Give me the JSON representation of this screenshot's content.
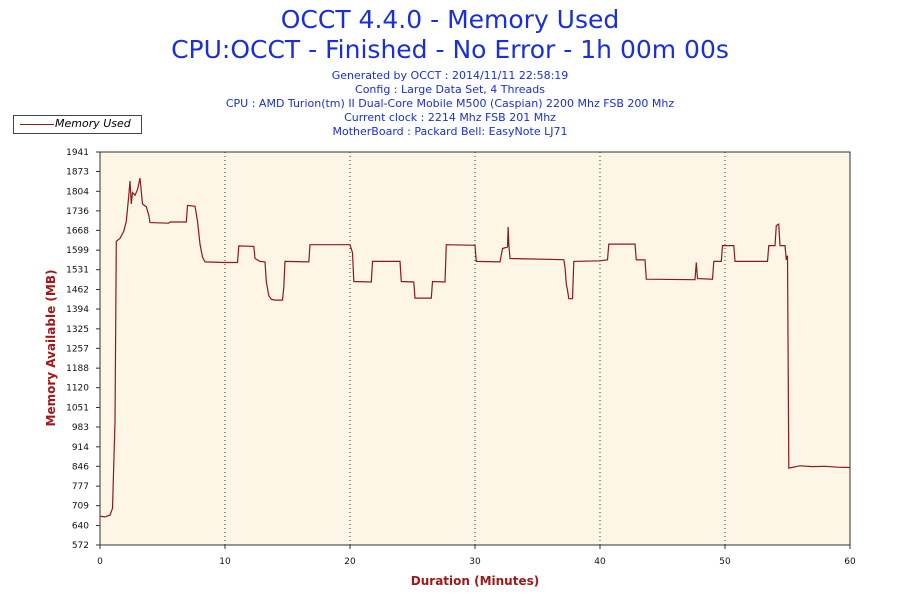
{
  "chart_data": {
    "type": "line",
    "title": "OCCT 4.4.0 - Memory Used",
    "subtitle": "CPU:OCCT - Finished - No Error - 1h 00m 00s",
    "info_lines": [
      "Generated by OCCT : 2014/11/11 22:58:19",
      "Config : Large Data Set, 4 Threads",
      "CPU : AMD Turion(tm) II Dual-Core Mobile M500 (Caspian) 2200 Mhz FSB 200 Mhz",
      "Current clock : 2214 Mhz FSB 201 Mhz",
      "MotherBoard : Packard Bell: EasyNote LJ71"
    ],
    "xlabel": "Duration (Minutes)",
    "ylabel": "Memory Available (MB)",
    "xlim": [
      0,
      60
    ],
    "ylim": [
      572,
      1941
    ],
    "xticks": [
      "0",
      "10",
      "20",
      "30",
      "40",
      "50",
      "60"
    ],
    "yticks": [
      "572",
      "640",
      "709",
      "777",
      "846",
      "914",
      "983",
      "1051",
      "1120",
      "1188",
      "1257",
      "1325",
      "1394",
      "1462",
      "1531",
      "1599",
      "1668",
      "1736",
      "1804",
      "1873",
      "1941"
    ],
    "grid": "vertical dotted lines at x ticks",
    "legend": "top-left",
    "colors": {
      "line": "#8b1a1a",
      "plot_bg": "#fdf5e6",
      "title": "#1a2fd8",
      "axis_title": "#a01818"
    },
    "series": [
      {
        "name": "Memory Used",
        "points": [
          [
            0,
            672
          ],
          [
            0.4,
            670
          ],
          [
            0.8,
            676
          ],
          [
            1.0,
            700
          ],
          [
            1.2,
            1000
          ],
          [
            1.3,
            1630
          ],
          [
            1.6,
            1640
          ],
          [
            1.9,
            1665
          ],
          [
            2.1,
            1700
          ],
          [
            2.3,
            1790
          ],
          [
            2.4,
            1840
          ],
          [
            2.5,
            1760
          ],
          [
            2.6,
            1800
          ],
          [
            2.8,
            1790
          ],
          [
            3.0,
            1810
          ],
          [
            3.2,
            1850
          ],
          [
            3.4,
            1760
          ],
          [
            3.7,
            1750
          ],
          [
            3.9,
            1720
          ],
          [
            4.0,
            1695
          ],
          [
            5.5,
            1693
          ],
          [
            5.6,
            1697
          ],
          [
            6.9,
            1697
          ],
          [
            7.0,
            1755
          ],
          [
            7.6,
            1752
          ],
          [
            7.8,
            1700
          ],
          [
            8.0,
            1620
          ],
          [
            8.2,
            1575
          ],
          [
            8.4,
            1558
          ],
          [
            10.0,
            1556
          ],
          [
            11.0,
            1556
          ],
          [
            11.1,
            1614
          ],
          [
            12.3,
            1612
          ],
          [
            12.4,
            1570
          ],
          [
            12.8,
            1560
          ],
          [
            13.2,
            1558
          ],
          [
            13.3,
            1490
          ],
          [
            13.5,
            1440
          ],
          [
            13.7,
            1428
          ],
          [
            14.0,
            1425
          ],
          [
            14.6,
            1425
          ],
          [
            14.7,
            1470
          ],
          [
            14.8,
            1560
          ],
          [
            16.7,
            1558
          ],
          [
            16.8,
            1618
          ],
          [
            20.0,
            1618
          ],
          [
            20.2,
            1590
          ],
          [
            20.3,
            1490
          ],
          [
            21.7,
            1488
          ],
          [
            21.8,
            1560
          ],
          [
            24.0,
            1560
          ],
          [
            24.1,
            1490
          ],
          [
            25.1,
            1488
          ],
          [
            25.2,
            1432
          ],
          [
            26.5,
            1432
          ],
          [
            26.6,
            1490
          ],
          [
            27.6,
            1488
          ],
          [
            27.7,
            1618
          ],
          [
            30.0,
            1616
          ],
          [
            30.1,
            1560
          ],
          [
            32.0,
            1558
          ],
          [
            32.2,
            1605
          ],
          [
            32.6,
            1610
          ],
          [
            32.65,
            1680
          ],
          [
            32.7,
            1620
          ],
          [
            32.8,
            1570
          ],
          [
            37.1,
            1566
          ],
          [
            37.2,
            1540
          ],
          [
            37.3,
            1480
          ],
          [
            37.4,
            1460
          ],
          [
            37.5,
            1430
          ],
          [
            37.8,
            1430
          ],
          [
            37.9,
            1560
          ],
          [
            40.0,
            1562
          ],
          [
            40.6,
            1565
          ],
          [
            40.7,
            1620
          ],
          [
            42.8,
            1620
          ],
          [
            42.9,
            1565
          ],
          [
            43.6,
            1565
          ],
          [
            43.7,
            1498
          ],
          [
            47.6,
            1496
          ],
          [
            47.7,
            1556
          ],
          [
            47.8,
            1500
          ],
          [
            49.0,
            1498
          ],
          [
            49.1,
            1560
          ],
          [
            49.7,
            1560
          ],
          [
            49.8,
            1615
          ],
          [
            50.7,
            1615
          ],
          [
            50.8,
            1560
          ],
          [
            53.4,
            1560
          ],
          [
            53.5,
            1615
          ],
          [
            54.0,
            1615
          ],
          [
            54.1,
            1685
          ],
          [
            54.3,
            1690
          ],
          [
            54.4,
            1615
          ],
          [
            54.8,
            1615
          ],
          [
            54.9,
            1565
          ],
          [
            55.0,
            1580
          ],
          [
            55.1,
            840
          ],
          [
            56.0,
            848
          ],
          [
            57.0,
            845
          ],
          [
            58.0,
            846
          ],
          [
            59.0,
            843
          ],
          [
            60.0,
            842
          ]
        ]
      }
    ]
  }
}
